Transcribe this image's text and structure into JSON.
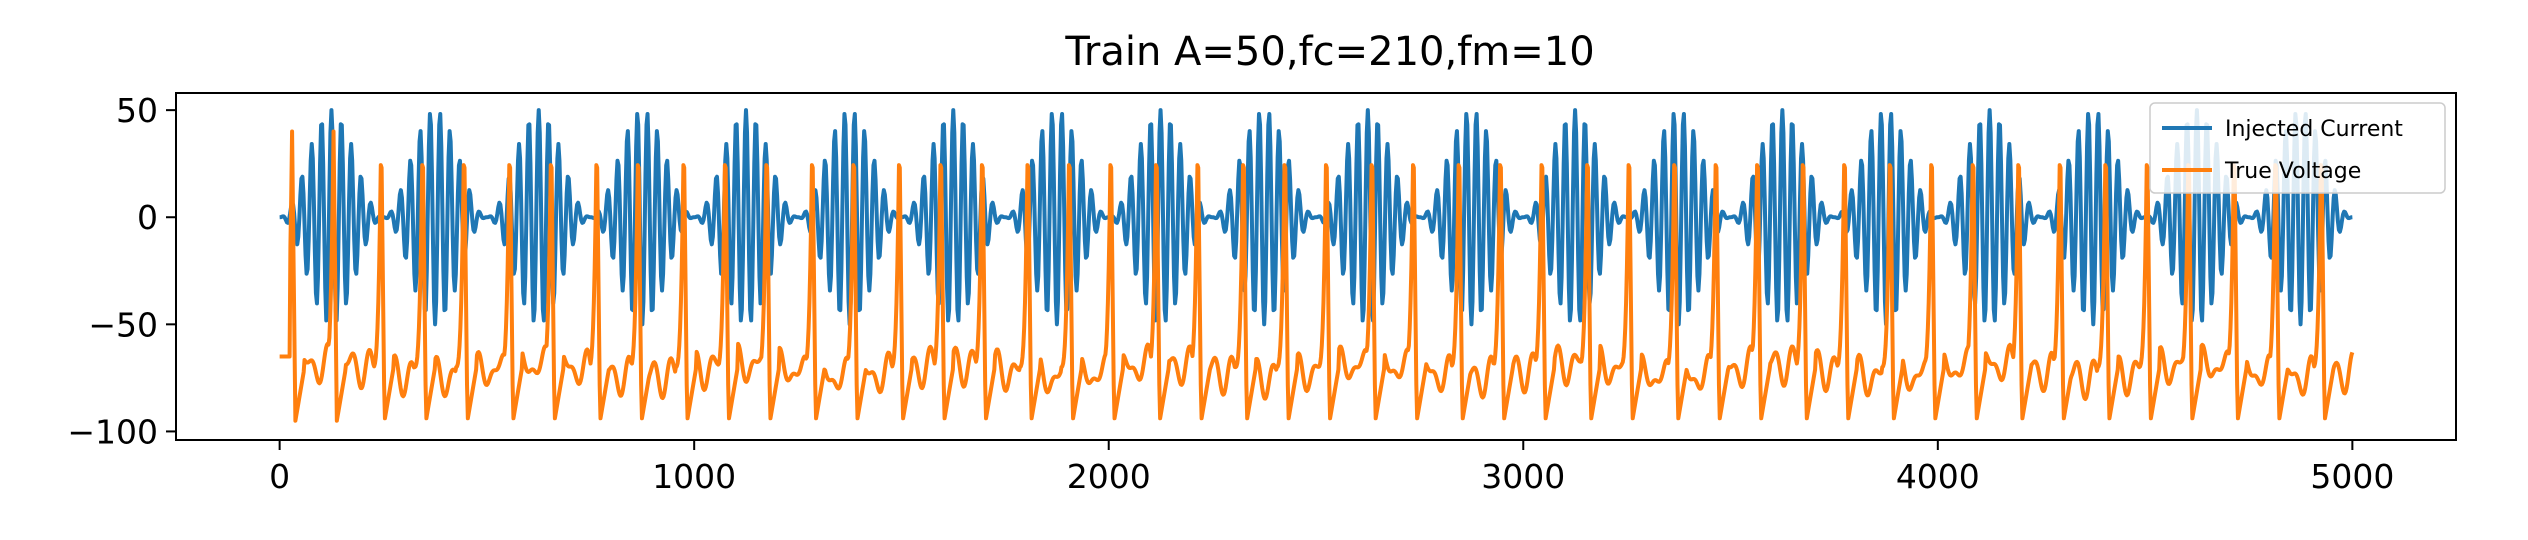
{
  "chart_data": {
    "type": "line",
    "title": "Train A=50,fc=210,fm=10",
    "xlabel": "",
    "ylabel": "",
    "xlim": [
      -250,
      5250
    ],
    "ylim": [
      -104,
      58
    ],
    "x_ticks": [
      0,
      1000,
      2000,
      3000,
      4000,
      5000
    ],
    "x_tick_labels": [
      "0",
      "1000",
      "2000",
      "3000",
      "4000",
      "5000"
    ],
    "y_ticks": [
      50,
      0,
      -50,
      -100
    ],
    "y_tick_labels": [
      "50",
      "0",
      "−50",
      "−100"
    ],
    "legend_position": "top-right",
    "grid": false,
    "series": [
      {
        "name": "Injected Current",
        "color": "#1f77b4",
        "x_range": [
          0,
          5000
        ],
        "n_points": 2000,
        "formula": "y = 50 * sin(2*pi*210*t) * sin(2*pi*10*t)^2, t = x/5000 s",
        "amplitude": 50
      },
      {
        "name": "True Voltage",
        "color": "#ff7f0e",
        "x_range": [
          0,
          5000
        ],
        "rest_value": -65,
        "spike_peak": 40,
        "min_value": -95,
        "approx_spike_x": [
          30,
          130,
          245,
          345,
          445,
          555,
          655,
          765,
          865,
          975,
          1075,
          1175,
          1285,
          1385,
          1495,
          1595,
          1695,
          1805,
          1905,
          2005,
          2115,
          2215,
          2325,
          2425,
          2525,
          2635,
          2735,
          2845,
          2945,
          3045,
          3155,
          3255,
          3365,
          3465,
          3565,
          3675,
          3775,
          3885,
          3985,
          4085,
          4195,
          4295,
          4405,
          4505,
          4605,
          4715,
          4815,
          4925
        ]
      }
    ]
  }
}
